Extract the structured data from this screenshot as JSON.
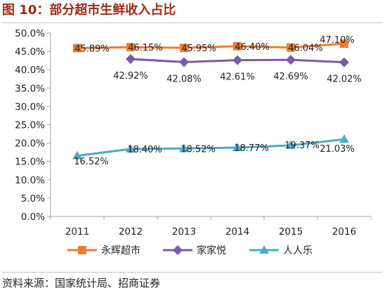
{
  "figure": {
    "title": "图 10：部分超市生鲜收入占比",
    "source": "资料来源：国家统计局、招商证券"
  },
  "chart_data": {
    "type": "line",
    "title": "",
    "xlabel": "",
    "ylabel": "",
    "categories": [
      "2011",
      "2012",
      "2013",
      "2014",
      "2015",
      "2016"
    ],
    "ylim": [
      0,
      50
    ],
    "y_ticks": [
      "0.0%",
      "5.0%",
      "10.0%",
      "15.0%",
      "20.0%",
      "25.0%",
      "30.0%",
      "35.0%",
      "40.0%",
      "45.0%",
      "50.0%"
    ],
    "grid": false,
    "legend_position": "bottom",
    "series": [
      {
        "name": "永辉超市",
        "color": "#ed7d31",
        "marker": "square",
        "values": [
          45.89,
          46.15,
          45.95,
          46.4,
          46.04,
          47.1
        ],
        "labels": [
          "45.89%",
          "46.15%",
          "45.95%",
          "46.40%",
          "46.04%",
          "47.10%"
        ]
      },
      {
        "name": "家家悦",
        "color": "#7a5aa6",
        "marker": "diamond",
        "values": [
          null,
          42.92,
          42.08,
          42.61,
          42.69,
          42.02
        ],
        "labels": [
          null,
          "42.92%",
          "42.08%",
          "42.61%",
          "42.69%",
          "42.02%"
        ]
      },
      {
        "name": "人人乐",
        "color": "#4bacc6",
        "marker": "triangle",
        "values": [
          16.52,
          18.4,
          18.52,
          18.77,
          19.37,
          21.03
        ],
        "labels": [
          "16.52%",
          "18.40%",
          "18.52%",
          "18.77%",
          "19.37%",
          "21.03%"
        ]
      }
    ]
  }
}
